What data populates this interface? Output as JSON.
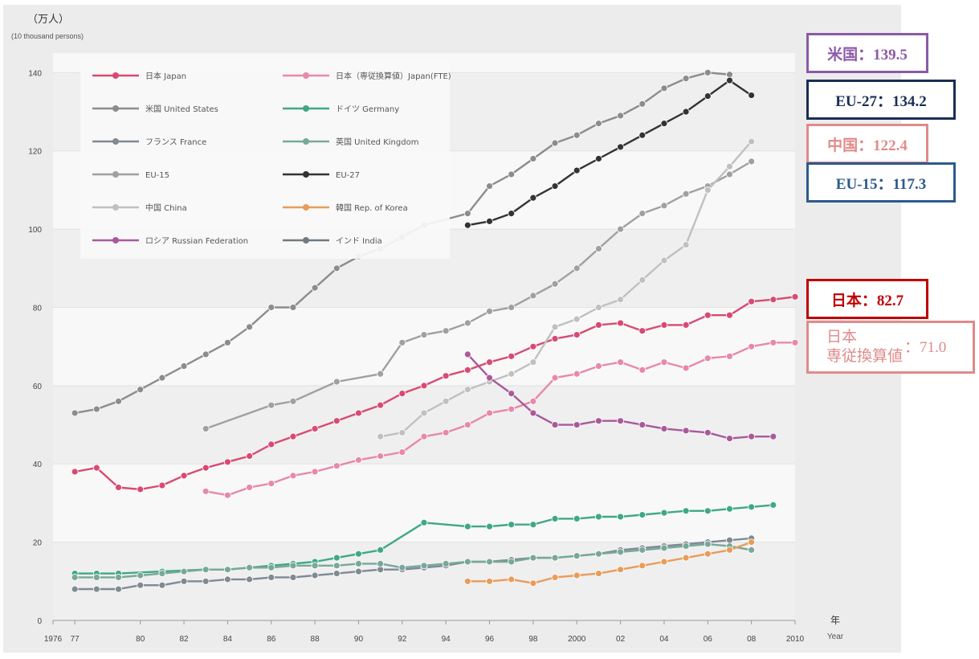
{
  "chart_data": {
    "type": "line",
    "unit_label": "（万人）",
    "unit_label_en": "(10 thousand persons)",
    "xlabel": "年",
    "xlabel_en": "Year",
    "xlim": [
      1976,
      2010
    ],
    "ylim": [
      0,
      145
    ],
    "yticks": [
      0,
      20,
      40,
      60,
      80,
      100,
      120,
      140
    ],
    "xtick_labels": [
      {
        "x": 1976,
        "label": "1976"
      },
      {
        "x": 1977,
        "label": "77"
      },
      {
        "x": 1980,
        "label": "80"
      },
      {
        "x": 1982,
        "label": "82"
      },
      {
        "x": 1984,
        "label": "84"
      },
      {
        "x": 1986,
        "label": "86"
      },
      {
        "x": 1988,
        "label": "88"
      },
      {
        "x": 1990,
        "label": "90"
      },
      {
        "x": 1992,
        "label": "92"
      },
      {
        "x": 1994,
        "label": "94"
      },
      {
        "x": 1996,
        "label": "96"
      },
      {
        "x": 1998,
        "label": "98"
      },
      {
        "x": 2000,
        "label": "2000"
      },
      {
        "x": 2002,
        "label": "02"
      },
      {
        "x": 2004,
        "label": "04"
      },
      {
        "x": 2006,
        "label": "06"
      },
      {
        "x": 2008,
        "label": "08"
      },
      {
        "x": 2010,
        "label": "2010"
      }
    ],
    "legend": [
      {
        "name": "日本 Japan",
        "color": "#d84a72"
      },
      {
        "name": "日本（専従換算値）Japan(FTE)",
        "color": "#e889a6"
      },
      {
        "name": "米国 United States",
        "color": "#8c8c8c"
      },
      {
        "name": "ドイツ Germany",
        "color": "#3fa888"
      },
      {
        "name": "フランス France",
        "color": "#7f8a92"
      },
      {
        "name": "英国 United Kingdom",
        "color": "#78a898"
      },
      {
        "name": "EU-15",
        "color": "#a0a0a0"
      },
      {
        "name": "EU-27",
        "color": "#333333"
      },
      {
        "name": "中国 China",
        "color": "#c0c0c0"
      },
      {
        "name": "韓国 Rep. of Korea",
        "color": "#e89c5a"
      },
      {
        "name": "ロシア Russian Federation",
        "color": "#a85a9a"
      },
      {
        "name": "インド India",
        "color": "#707a80"
      }
    ],
    "series": [
      {
        "name": "日本 Japan",
        "color": "#d84a72",
        "x": [
          1977,
          1978,
          1979,
          1980,
          1981,
          1982,
          1983,
          1984,
          1985,
          1986,
          1987,
          1988,
          1989,
          1990,
          1991,
          1992,
          1993,
          1994,
          1995,
          1996,
          1997,
          1998,
          1999,
          2000,
          2001,
          2002,
          2003,
          2004,
          2005,
          2006,
          2007,
          2008,
          2009,
          2010
        ],
        "y": [
          38,
          39,
          34,
          33.5,
          34.5,
          37,
          39,
          40.5,
          42,
          45,
          47,
          49,
          51,
          53,
          55,
          58,
          60,
          62.5,
          64,
          66,
          67.5,
          70,
          72,
          73,
          75.5,
          76,
          74,
          75.5,
          75.5,
          78,
          78,
          81.5,
          82,
          82.7
        ]
      },
      {
        "name": "日本（専従換算値）Japan(FTE)",
        "color": "#e889a6",
        "x": [
          1983,
          1984,
          1985,
          1986,
          1987,
          1988,
          1989,
          1990,
          1991,
          1992,
          1993,
          1994,
          1995,
          1996,
          1997,
          1998,
          1999,
          2000,
          2001,
          2002,
          2003,
          2004,
          2005,
          2006,
          2007,
          2008,
          2009,
          2010
        ],
        "y": [
          33,
          32,
          34,
          35,
          37,
          38,
          39.5,
          41,
          42,
          43,
          47,
          48,
          50,
          53,
          54,
          56,
          62,
          63,
          65,
          66,
          64,
          66,
          64.5,
          67,
          67.5,
          70,
          71,
          71
        ]
      },
      {
        "name": "米国 United States",
        "color": "#8c8c8c",
        "x": [
          1977,
          1978,
          1979,
          1980,
          1981,
          1982,
          1983,
          1984,
          1985,
          1986,
          1987,
          1988,
          1989,
          1990,
          1991,
          1992,
          1993,
          1995,
          1996,
          1997,
          1998,
          1999,
          2000,
          2001,
          2002,
          2003,
          2004,
          2005,
          2006,
          2007
        ],
        "y": [
          53,
          54,
          56,
          59,
          62,
          65,
          68,
          71,
          75,
          80,
          80,
          85,
          90,
          93,
          95,
          98,
          101,
          104,
          111,
          114,
          118,
          122,
          124,
          127,
          129,
          132,
          136,
          138.5,
          140,
          139.5
        ]
      },
      {
        "name": "EU-15",
        "color": "#a0a0a0",
        "x": [
          1983,
          1986,
          1987,
          1989,
          1991,
          1992,
          1993,
          1994,
          1995,
          1996,
          1997,
          1998,
          1999,
          2000,
          2001,
          2002,
          2003,
          2004,
          2005,
          2006,
          2007,
          2008
        ],
        "y": [
          49,
          55,
          56,
          61,
          63,
          71,
          73,
          74,
          76,
          79,
          80,
          83,
          86,
          90,
          95,
          100,
          104,
          106,
          109,
          111,
          114,
          117.3
        ]
      },
      {
        "name": "EU-27",
        "color": "#333333",
        "x": [
          1995,
          1996,
          1997,
          1998,
          1999,
          2000,
          2001,
          2002,
          2003,
          2004,
          2005,
          2006,
          2007,
          2008
        ],
        "y": [
          101,
          102,
          104,
          108,
          111,
          115,
          118,
          121,
          124,
          127,
          130,
          134,
          138,
          134.2
        ]
      },
      {
        "name": "中国 China",
        "color": "#c0c0c0",
        "x": [
          1991,
          1992,
          1993,
          1994,
          1995,
          1996,
          1997,
          1998,
          1999,
          2000,
          2001,
          2002,
          2003,
          2004,
          2005,
          2006,
          2007,
          2008
        ],
        "y": [
          47,
          48,
          53,
          56,
          59,
          61,
          63,
          66,
          75,
          77,
          80,
          82,
          87,
          92,
          96,
          110,
          116,
          122.4
        ]
      },
      {
        "name": "ロシア Russian Federation",
        "color": "#a85a9a",
        "x": [
          1995,
          1996,
          1997,
          1998,
          1999,
          2000,
          2001,
          2002,
          2003,
          2004,
          2005,
          2006,
          2007,
          2008,
          2009
        ],
        "y": [
          68,
          62,
          58,
          53,
          50,
          50,
          51,
          51,
          50,
          49,
          48.5,
          48,
          46.5,
          47,
          47
        ]
      },
      {
        "name": "ドイツ Germany",
        "color": "#3fa888",
        "x": [
          1977,
          1978,
          1979,
          1981,
          1983,
          1984,
          1985,
          1986,
          1987,
          1988,
          1989,
          1990,
          1991,
          1993,
          1995,
          1996,
          1997,
          1998,
          1999,
          2000,
          2001,
          2002,
          2003,
          2004,
          2005,
          2006,
          2007,
          2008,
          2009
        ],
        "y": [
          12,
          12,
          12,
          12.5,
          13,
          13,
          13.5,
          14,
          14.5,
          15,
          16,
          17,
          18,
          25,
          24,
          24,
          24.5,
          24.5,
          26,
          26,
          26.5,
          26.5,
          27,
          27.5,
          28,
          28,
          28.5,
          29,
          29.5
        ]
      },
      {
        "name": "フランス France",
        "color": "#7f8a92",
        "x": [
          1977,
          1978,
          1979,
          1980,
          1981,
          1982,
          1983,
          1984,
          1985,
          1986,
          1987,
          1988,
          1989,
          1990,
          1991,
          1992,
          1993,
          1994,
          1995,
          1996,
          1997,
          1998,
          1999,
          2000,
          2001,
          2002,
          2003,
          2004,
          2005,
          2006,
          2007,
          2008
        ],
        "y": [
          8,
          8,
          8,
          9,
          9,
          10,
          10,
          10.5,
          10.5,
          11,
          11,
          11.5,
          12,
          12.5,
          13,
          13,
          13.5,
          14,
          15,
          15,
          15.5,
          16,
          16,
          16.5,
          17,
          18,
          18.5,
          19,
          19.5,
          20,
          20.5,
          21
        ]
      },
      {
        "name": "英国 United Kingdom",
        "color": "#78a898",
        "x": [
          1977,
          1978,
          1979,
          1980,
          1981,
          1982,
          1983,
          1984,
          1985,
          1986,
          1987,
          1988,
          1989,
          1990,
          1991,
          1992,
          1993,
          1994,
          1995,
          1996,
          1997,
          1998,
          1999,
          2000,
          2001,
          2002,
          2003,
          2004,
          2005,
          2006,
          2007,
          2008
        ],
        "y": [
          11,
          11,
          11,
          11.5,
          12,
          12.5,
          13,
          13,
          13.5,
          13.5,
          14,
          14,
          14,
          14.5,
          14.5,
          13.5,
          14,
          14.5,
          15,
          15,
          15,
          16,
          16,
          16.5,
          17,
          17.5,
          18,
          18.5,
          19,
          19.5,
          19,
          18
        ]
      },
      {
        "name": "韓国 Rep. of Korea",
        "color": "#e89c5a",
        "x": [
          1995,
          1996,
          1997,
          1998,
          1999,
          2000,
          2001,
          2002,
          2003,
          2004,
          2005,
          2006,
          2007,
          2008
        ],
        "y": [
          10,
          10,
          10.5,
          9.5,
          11,
          11.5,
          12,
          13,
          14,
          15,
          16,
          17,
          18,
          20
        ]
      }
    ],
    "annotations": [
      {
        "label": "米国：139.5",
        "color": "#8b5aa8"
      },
      {
        "label": "EU-27：134.2",
        "color": "#1a2e55"
      },
      {
        "label": "中国：122.4",
        "color": "#e08a8a"
      },
      {
        "label": "EU-15：117.3",
        "color": "#2d5a8c"
      },
      {
        "label": "日本：82.7",
        "color": "#c00000"
      },
      {
        "label_line1": "日本",
        "label_line2": "専従換算値",
        "value": "：71.0",
        "color": "#e08a8a"
      }
    ]
  }
}
